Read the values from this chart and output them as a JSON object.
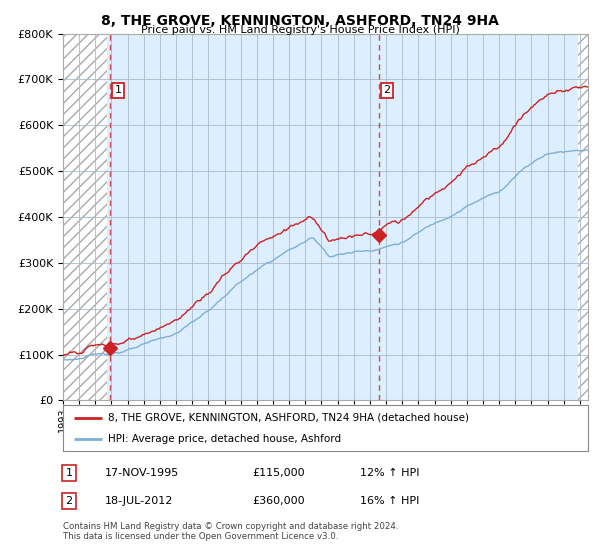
{
  "title": "8, THE GROVE, KENNINGTON, ASHFORD, TN24 9HA",
  "subtitle": "Price paid vs. HM Land Registry's House Price Index (HPI)",
  "ylabel_values": [
    "£0",
    "£100K",
    "£200K",
    "£300K",
    "£400K",
    "£500K",
    "£600K",
    "£700K",
    "£800K"
  ],
  "yticks": [
    0,
    100000,
    200000,
    300000,
    400000,
    500000,
    600000,
    700000,
    800000
  ],
  "ylim": [
    0,
    800000
  ],
  "xlim_start": 1993.0,
  "xlim_end": 2025.5,
  "hpi_color": "#7fafd4",
  "price_color": "#cc2222",
  "plot_bg_color": "#ddeeff",
  "hatch_end_x": 1995.7,
  "sale1_x": 1995.88,
  "sale1_y": 115000,
  "sale2_x": 2012.54,
  "sale2_y": 360000,
  "sale1_label": "1",
  "sale2_label": "2",
  "legend_property": "8, THE GROVE, KENNINGTON, ASHFORD, TN24 9HA (detached house)",
  "legend_hpi": "HPI: Average price, detached house, Ashford",
  "table_row1": [
    "1",
    "17-NOV-1995",
    "£115,000",
    "12% ↑ HPI"
  ],
  "table_row2": [
    "2",
    "18-JUL-2012",
    "£360,000",
    "16% ↑ HPI"
  ],
  "footnote": "Contains HM Land Registry data © Crown copyright and database right 2024.\nThis data is licensed under the Open Government Licence v3.0.",
  "background_color": "#ffffff",
  "grid_color": "#aabbcc"
}
